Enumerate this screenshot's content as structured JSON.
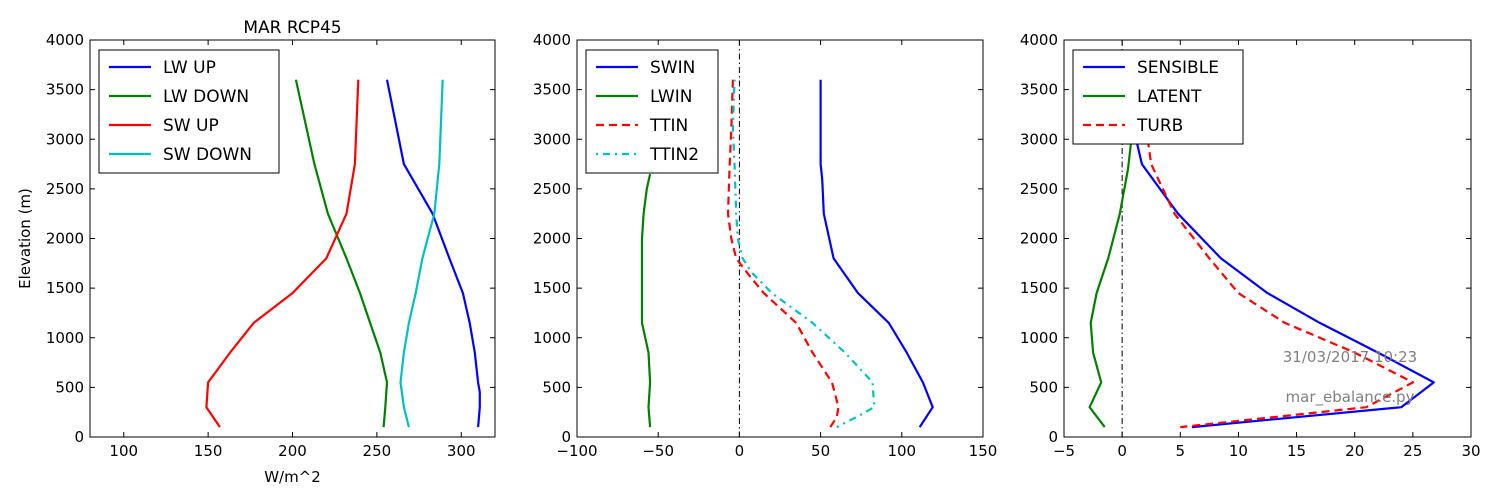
{
  "chart_data": [
    {
      "type": "line",
      "title": "MAR RCP45",
      "xlabel": "W/m^2",
      "ylabel": "Elevation (m)",
      "xlim": [
        80,
        320
      ],
      "ylim": [
        0,
        4000
      ],
      "xticks": [
        100,
        150,
        200,
        250,
        300
      ],
      "yticks": [
        0,
        500,
        1000,
        1500,
        2000,
        2500,
        3000,
        3500,
        4000
      ],
      "legend": "top-left",
      "series": [
        {
          "name": "LW UP",
          "color": "#0000ff",
          "dash": "solid",
          "x": [
            256,
            266,
            283,
            293,
            301,
            305,
            308,
            310,
            311,
            311,
            310
          ],
          "y": [
            3600,
            2750,
            2250,
            1800,
            1450,
            1150,
            850,
            550,
            450,
            300,
            100
          ]
        },
        {
          "name": "LW DOWN",
          "color": "#008000",
          "dash": "solid",
          "x": [
            202,
            213,
            221,
            232,
            240,
            246,
            252,
            256,
            255,
            254
          ],
          "y": [
            3600,
            2750,
            2250,
            1800,
            1450,
            1150,
            850,
            550,
            300,
            100
          ]
        },
        {
          "name": "SW UP",
          "color": "#ff0000",
          "dash": "solid",
          "x": [
            239,
            237,
            232,
            220,
            200,
            177,
            163,
            150,
            149,
            157
          ],
          "y": [
            3600,
            2750,
            2250,
            1800,
            1450,
            1150,
            850,
            550,
            300,
            100
          ]
        },
        {
          "name": "SW DOWN",
          "color": "#00bfbf",
          "dash": "solid",
          "x": [
            289,
            287,
            284,
            277,
            273,
            269,
            266,
            264,
            266,
            269
          ],
          "y": [
            3600,
            2750,
            2250,
            1800,
            1450,
            1150,
            850,
            550,
            300,
            100
          ]
        }
      ]
    },
    {
      "type": "line",
      "title": "",
      "xlabel": "",
      "ylabel": "",
      "xlim": [
        -100,
        150
      ],
      "ylim": [
        0,
        4000
      ],
      "xticks": [
        -100,
        -50,
        0,
        50,
        100,
        150
      ],
      "yticks": [
        0,
        500,
        1000,
        1500,
        2000,
        2500,
        3000,
        3500,
        4000
      ],
      "legend": "top-left",
      "zero_line": true,
      "series": [
        {
          "name": "SWIN",
          "color": "#0000ff",
          "dash": "solid",
          "x": [
            50,
            50,
            51,
            52,
            58,
            73,
            92,
            103,
            113,
            119,
            111
          ],
          "y": [
            3600,
            2750,
            2600,
            2250,
            1800,
            1450,
            1150,
            850,
            550,
            300,
            100
          ]
        },
        {
          "name": "LWIN",
          "color": "#008000",
          "dash": "solid",
          "x": [
            -55,
            -57,
            -59,
            -60,
            -60,
            -60,
            -60,
            -56,
            -55,
            -56,
            -55
          ],
          "y": [
            2650,
            2500,
            2250,
            2000,
            1800,
            1450,
            1150,
            850,
            550,
            300,
            100
          ]
        },
        {
          "name": "TTIN",
          "color": "#ff0000",
          "dash": "dashed",
          "x": [
            -4,
            -5,
            -6,
            -7,
            -5,
            -2,
            5,
            15,
            35,
            45,
            57,
            61,
            60,
            56
          ],
          "y": [
            3600,
            3100,
            2750,
            2250,
            2000,
            1800,
            1650,
            1450,
            1150,
            850,
            550,
            300,
            200,
            100
          ]
        },
        {
          "name": "TTIN2",
          "color": "#00bfbf",
          "dash": "dashdot",
          "x": [
            -3,
            -4,
            -3,
            -2,
            -1,
            2,
            8,
            20,
            45,
            65,
            82,
            83,
            72,
            60
          ],
          "y": [
            3600,
            3100,
            2750,
            2250,
            2000,
            1800,
            1650,
            1450,
            1150,
            850,
            550,
            300,
            200,
            100
          ]
        }
      ]
    },
    {
      "type": "line",
      "title": "",
      "xlabel": "",
      "ylabel": "",
      "xlim": [
        -5,
        30
      ],
      "ylim": [
        0,
        4000
      ],
      "xticks": [
        -5,
        0,
        5,
        10,
        15,
        20,
        25,
        30
      ],
      "yticks": [
        0,
        500,
        1000,
        1500,
        2000,
        2500,
        3000,
        3500,
        4000
      ],
      "legend": "top-left",
      "zero_line": true,
      "annotations": [
        "31/03/2017 10:23",
        "mar_ebalance.py"
      ],
      "series": [
        {
          "name": "SENSIBLE",
          "color": "#0000ff",
          "dash": "solid",
          "x": [
            1.2,
            1.7,
            4.8,
            8.5,
            12.5,
            17,
            22,
            26.8,
            24,
            6
          ],
          "y": [
            3000,
            2750,
            2250,
            1800,
            1450,
            1150,
            850,
            550,
            300,
            100
          ]
        },
        {
          "name": "LATENT",
          "color": "#008000",
          "dash": "solid",
          "x": [
            0.8,
            0.5,
            -0.2,
            -1.2,
            -2.2,
            -2.7,
            -2.5,
            -1.8,
            -2.8,
            -1.5
          ],
          "y": [
            3000,
            2700,
            2250,
            1800,
            1450,
            1150,
            850,
            550,
            300,
            100
          ]
        },
        {
          "name": "TURB",
          "color": "#ff0000",
          "dash": "dashed",
          "x": [
            2.2,
            2.5,
            4.5,
            7.5,
            10,
            14,
            20,
            25,
            21,
            5
          ],
          "y": [
            3000,
            2750,
            2250,
            1800,
            1450,
            1150,
            850,
            550,
            300,
            100
          ]
        }
      ]
    }
  ]
}
